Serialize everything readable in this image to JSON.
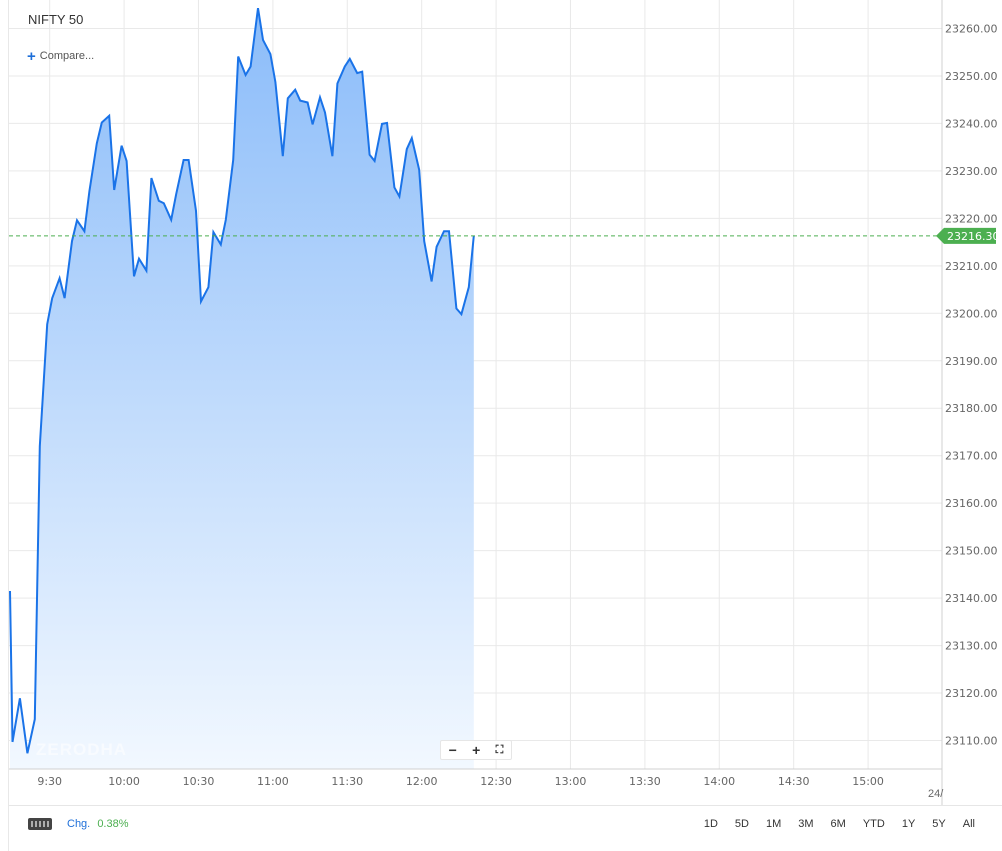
{
  "header": {
    "symbol": "NIFTY 50",
    "compare_label": "Compare..."
  },
  "chart_data": {
    "type": "area",
    "title": "NIFTY 50",
    "xlabel": "",
    "ylabel": "",
    "x_tick_labels": [
      "9:30",
      "10:00",
      "10:30",
      "11:00",
      "11:30",
      "12:00",
      "12:30",
      "13:00",
      "13:30",
      "14:00",
      "14:30",
      "15:00"
    ],
    "y_tick_labels": [
      "23260.00",
      "23250.00",
      "23240.00",
      "23230.00",
      "23220.00",
      "23210.00",
      "23200.00",
      "23190.00",
      "23180.00",
      "23170.00",
      "23160.00",
      "23150.00",
      "23140.00",
      "23130.00",
      "23120.00",
      "23110.00"
    ],
    "ylim": [
      23104,
      23266
    ],
    "grid": true,
    "last_price_label": "23216.30",
    "last_price": 23216.3,
    "x_minutes": [
      0,
      1,
      4,
      7,
      10,
      12,
      15,
      17,
      20,
      22,
      25,
      27,
      30,
      32,
      35,
      37,
      40,
      42,
      45,
      47,
      50,
      52,
      55,
      57,
      60,
      62,
      65,
      67,
      70,
      72,
      75,
      77,
      80,
      82,
      85,
      87,
      90,
      92,
      95,
      97,
      100,
      102,
      105,
      107,
      110,
      112,
      115,
      117,
      120,
      122,
      125,
      127,
      130,
      132,
      135,
      137,
      140,
      142,
      145,
      147,
      150,
      152,
      155,
      157,
      160,
      162,
      165,
      167,
      170,
      172,
      175,
      177,
      180,
      182,
      185,
      187,
      190,
      192,
      195,
      197,
      200,
      202,
      205,
      207,
      210,
      212,
      215,
      217,
      220,
      222,
      225,
      227,
      230,
      232,
      235,
      237,
      240,
      242,
      245,
      247,
      250,
      252,
      255,
      257,
      260,
      262,
      265,
      267,
      270,
      272,
      275,
      277,
      280,
      282,
      285
    ],
    "values": [
      23141.5,
      23109.7,
      23118.9,
      23107.3,
      23114.5,
      23172.0,
      23197.7,
      23203.2,
      23207.4,
      23203.2,
      23215.2,
      23219.6,
      23217.3,
      23225.7,
      23235.8,
      23240.2,
      23241.6,
      23226.0,
      23235.3,
      23232.1,
      23207.8,
      23211.5,
      23209.0,
      23228.5,
      23223.7,
      23223.2,
      23219.7,
      23225.1,
      23232.3,
      23232.3,
      23221.6,
      23202.5,
      23205.5,
      23217.1,
      23214.5,
      23219.7,
      23232.3,
      23254.1,
      23250.2,
      23252.0,
      23264.3,
      23257.6,
      23254.6,
      23248.7,
      23233.1,
      23245.3,
      23247.1,
      23244.8,
      23244.4,
      23239.8,
      23245.5,
      23242.3,
      23233.1,
      23248.4,
      23252.0,
      23253.6,
      23250.6,
      23250.9,
      23233.4,
      23232.1,
      23239.9,
      23240.1,
      23226.5,
      23224.6,
      23234.6,
      23236.9,
      23230.2,
      23215.2,
      23206.7,
      23214.0,
      23217.3,
      23217.3,
      23201.0,
      23199.8,
      23205.5,
      23216.3,
      23216.3,
      23216.3,
      23216.3,
      23216.3,
      23216.3,
      23216.3,
      23216.3,
      23216.3,
      23216.3,
      23216.3,
      23216.3,
      23216.3,
      23216.3,
      23216.3,
      23216.3,
      23216.3,
      23216.3,
      23216.3,
      23216.3,
      23216.3,
      23216.3,
      23216.3,
      23216.3,
      23216.3,
      23216.3,
      23216.3,
      23216.3,
      23216.3,
      23216.3,
      23216.3,
      23216.3,
      23216.3,
      23216.3,
      23216.3,
      23216.3,
      23216.3,
      23216.3,
      23216.3,
      23216.3
    ],
    "visible_points": 76,
    "series": [
      {
        "name": "",
        "color": "#1a73e8"
      }
    ],
    "colors": {
      "line": "#1a73e8",
      "fill_top": "#8bbcf9",
      "fill_bottom": "#f2f8ff",
      "last_price_badge": "#4caf50",
      "grid": "#e9e9e9"
    }
  },
  "zoom": {
    "minus": "−",
    "plus": "+",
    "fullscreen": "⛶"
  },
  "watermark": "ZERODHA",
  "axis_cut_label": "24/",
  "footer": {
    "chg_label": "Chg.",
    "chg_value": "0.38%",
    "ranges": [
      "1D",
      "5D",
      "1M",
      "3M",
      "6M",
      "YTD",
      "1Y",
      "5Y",
      "All"
    ]
  }
}
